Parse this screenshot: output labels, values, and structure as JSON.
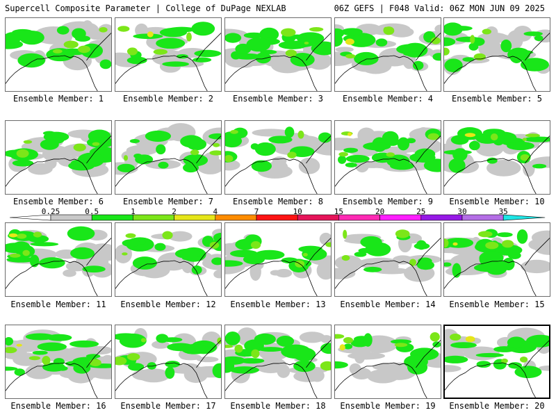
{
  "header": {
    "left": "Supercell Composite Parameter | College of DuPage NEXLAB",
    "right": "06Z GEFS | F048 Valid: 06Z MON JUN 09 2025"
  },
  "colorbar": {
    "labels": [
      "0.25",
      "0.5",
      "1",
      "2",
      "4",
      "7",
      "10",
      "15",
      "20",
      "25",
      "30",
      "35"
    ],
    "colors": [
      "#c8c8c8",
      "#19e619",
      "#7ce619",
      "#e6e619",
      "#ff8c00",
      "#ff1414",
      "#e6145a",
      "#ff2ab4",
      "#ff1eff",
      "#9619e6",
      "#b46ee6",
      "#1ee6e6"
    ]
  },
  "members": [
    {
      "label": "Ensemble Member: 1",
      "highlight": false
    },
    {
      "label": "Ensemble Member: 2",
      "highlight": false
    },
    {
      "label": "Ensemble Member: 3",
      "highlight": false
    },
    {
      "label": "Ensemble Member: 4",
      "highlight": false
    },
    {
      "label": "Ensemble Member: 5",
      "highlight": false
    },
    {
      "label": "Ensemble Member: 6",
      "highlight": false
    },
    {
      "label": "Ensemble Member: 7",
      "highlight": false
    },
    {
      "label": "Ensemble Member: 8",
      "highlight": false
    },
    {
      "label": "Ensemble Member: 9",
      "highlight": false
    },
    {
      "label": "Ensemble Member: 10",
      "highlight": false
    },
    {
      "label": "Ensemble Member: 11",
      "highlight": false
    },
    {
      "label": "Ensemble Member: 12",
      "highlight": false
    },
    {
      "label": "Ensemble Member: 13",
      "highlight": false
    },
    {
      "label": "Ensemble Member: 14",
      "highlight": false
    },
    {
      "label": "Ensemble Member: 15",
      "highlight": false
    },
    {
      "label": "Ensemble Member: 16",
      "highlight": false
    },
    {
      "label": "Ensemble Member: 17",
      "highlight": false
    },
    {
      "label": "Ensemble Member: 18",
      "highlight": false
    },
    {
      "label": "Ensemble Member: 19",
      "highlight": false
    },
    {
      "label": "Ensemble Member: 20",
      "highlight": true
    }
  ]
}
